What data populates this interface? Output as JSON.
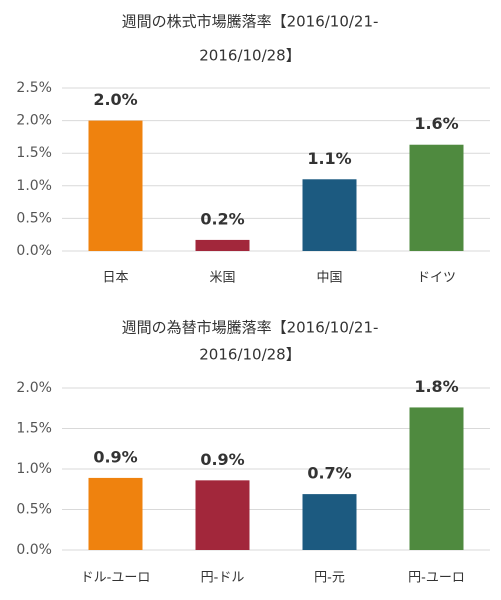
{
  "chart_data": [
    {
      "type": "bar",
      "title": [
        "週間の株式市場騰落率【2016/10/21-",
        "2016/10/28】"
      ],
      "categories": [
        "日本",
        "米国",
        "中国",
        "ドイツ"
      ],
      "values": [
        2.0,
        0.17,
        1.1,
        1.63
      ],
      "value_labels": [
        "2.0%",
        "0.2%",
        "1.1%",
        "1.6%"
      ],
      "colors": [
        "#ef820e",
        "#a2273b",
        "#1c5a80",
        "#4f8a3f"
      ],
      "ylim": [
        0,
        2.5
      ],
      "yticks": [
        {
          "value": 0,
          "label": "0.0%"
        },
        {
          "value": 0.5,
          "label": "0.5%"
        },
        {
          "value": 1.0,
          "label": "1.0%"
        },
        {
          "value": 1.5,
          "label": "1.5%"
        },
        {
          "value": 2.0,
          "label": "2.0%"
        },
        {
          "value": 2.5,
          "label": "2.5%"
        }
      ],
      "grid": true
    },
    {
      "type": "bar",
      "title": [
        "週間の為替市場騰落率【2016/10/21-",
        "2016/10/28】"
      ],
      "categories": [
        "ドル-ユーロ",
        "円-ドル",
        "円-元",
        "円-ユーロ"
      ],
      "values": [
        0.89,
        0.86,
        0.69,
        1.76
      ],
      "value_labels": [
        "0.9%",
        "0.9%",
        "0.7%",
        "1.8%"
      ],
      "colors": [
        "#ef820e",
        "#a2273b",
        "#1c5a80",
        "#4f8a3f"
      ],
      "ylim": [
        0,
        2.0
      ],
      "yticks": [
        {
          "value": 0,
          "label": "0.0%"
        },
        {
          "value": 0.5,
          "label": "0.5%"
        },
        {
          "value": 1.0,
          "label": "1.0%"
        },
        {
          "value": 1.5,
          "label": "1.5%"
        },
        {
          "value": 2.0,
          "label": "2.0%"
        }
      ],
      "grid": true
    }
  ]
}
